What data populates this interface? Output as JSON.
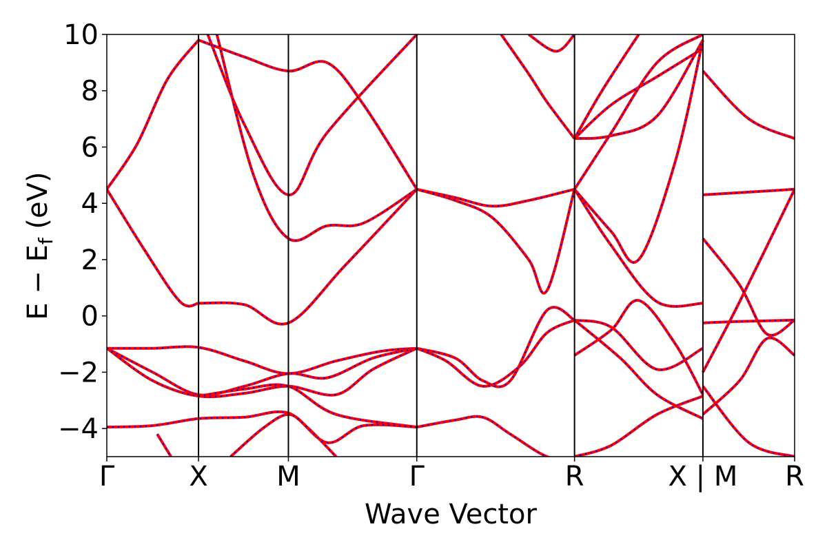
{
  "chart_data": {
    "type": "line",
    "title": "",
    "xlabel": "Wave Vector",
    "ylabel": "E − E",
    "ylabel_subscript": "f",
    "ylabel_unit": " (eV)",
    "ylim": [
      -5,
      10
    ],
    "yticks": [
      -4,
      -2,
      0,
      2,
      4,
      6,
      8,
      10
    ],
    "ytick_labels": [
      "−4",
      "−2",
      "0",
      "2",
      "4",
      "6",
      "8",
      "10"
    ],
    "xlim": [
      0,
      7.5
    ],
    "kpoints": [
      {
        "label": "Γ",
        "x": 0
      },
      {
        "label": "X",
        "x": 1
      },
      {
        "label": "M",
        "x": 1.98
      },
      {
        "label": "Γ",
        "x": 3.38
      },
      {
        "label": "R",
        "x": 5.1
      },
      {
        "label": "X | M",
        "x": 6.5
      },
      {
        "label": "R",
        "x": 7.5
      }
    ],
    "grid": false,
    "legend": "none",
    "colors": {
      "primary": "#ff0000",
      "overlay": "#0000ff"
    },
    "series": [
      {
        "x": [
          0,
          0.33,
          0.66,
          1
        ],
        "values": [
          4.5,
          6.1,
          8.4,
          9.8
        ]
      },
      {
        "x": [
          1,
          1.5,
          1.98,
          2.4,
          2.8,
          3.38
        ],
        "values": [
          9.8,
          9.2,
          8.7,
          9.0,
          7.5,
          4.5
        ]
      },
      {
        "x": [
          0,
          0.4,
          0.8,
          1
        ],
        "values": [
          4.5,
          2.4,
          0.5,
          0.45
        ]
      },
      {
        "x": [
          1,
          1.5,
          1.98,
          2.6,
          3.38
        ],
        "values": [
          0.45,
          0.4,
          -0.25,
          1.8,
          4.5
        ]
      },
      {
        "x": [
          1.1,
          1.5,
          1.98,
          2.4,
          3.38
        ],
        "values": [
          10,
          6.8,
          4.3,
          6.5,
          10
        ]
      },
      {
        "x": [
          1.2,
          1.6,
          1.98,
          2.4,
          2.8,
          3.38
        ],
        "values": [
          10,
          5.0,
          2.75,
          3.2,
          3.3,
          4.5
        ]
      },
      {
        "x": [
          0,
          0.5,
          1,
          1.5,
          1.98,
          2.5,
          3.0,
          3.38
        ],
        "values": [
          -1.15,
          -1.15,
          -1.12,
          -1.6,
          -2.05,
          -1.6,
          -1.25,
          -1.15
        ]
      },
      {
        "x": [
          0,
          0.5,
          1,
          1.5,
          1.98,
          2.4,
          2.9,
          3.38
        ],
        "values": [
          -1.15,
          -2.0,
          -2.8,
          -2.5,
          -2.05,
          -2.2,
          -1.5,
          -1.15
        ]
      },
      {
        "x": [
          0,
          0.5,
          1,
          1.5,
          1.98,
          2.5,
          2.9,
          3.38
        ],
        "values": [
          -1.15,
          -2.3,
          -2.85,
          -2.75,
          -2.5,
          -2.8,
          -1.9,
          -1.15
        ]
      },
      {
        "x": [
          1,
          1.5,
          1.98,
          2.5,
          3.38
        ],
        "values": [
          -2.85,
          -2.6,
          -2.5,
          -3.5,
          -3.95
        ]
      },
      {
        "x": [
          0,
          0.5,
          1,
          1.5,
          1.98,
          2.4,
          2.8,
          3.38
        ],
        "values": [
          -3.95,
          -3.9,
          -3.65,
          -3.6,
          -3.45,
          -4.5,
          -3.9,
          -3.95
        ]
      },
      {
        "x": [
          0.55,
          0.7
        ],
        "values": [
          -4.2,
          -5.0
        ]
      },
      {
        "x": [
          1.35,
          1.7,
          1.98,
          2.2,
          2.5
        ],
        "values": [
          -5.0,
          -4.0,
          -3.5,
          -4.0,
          -5.0
        ]
      },
      {
        "x": [
          3.38,
          3.8,
          4.2,
          4.6,
          5.1
        ],
        "values": [
          4.5,
          4.2,
          3.9,
          4.1,
          4.5
        ]
      },
      {
        "x": [
          3.38,
          3.8,
          4.2,
          4.6,
          4.8,
          5.1
        ],
        "values": [
          4.5,
          4.1,
          3.5,
          2.0,
          0.9,
          4.5
        ]
      },
      {
        "x": [
          3.38,
          3.8,
          4.1,
          4.4,
          4.8,
          5.1
        ],
        "values": [
          -1.15,
          -1.5,
          -2.3,
          -2.3,
          0.2,
          -0.15
        ]
      },
      {
        "x": [
          3.38,
          3.7,
          4.1,
          4.5,
          4.8,
          5.1
        ],
        "values": [
          -1.15,
          -1.6,
          -2.5,
          -1.8,
          -0.6,
          -0.15
        ]
      },
      {
        "x": [
          3.38,
          3.8,
          4.1,
          4.4,
          4.8,
          5.1
        ],
        "values": [
          -3.95,
          -3.7,
          -3.6,
          -4.2,
          -5.0,
          -5.1
        ]
      },
      {
        "x": [
          4.3,
          4.6,
          4.8,
          5.1
        ],
        "values": [
          10,
          8.6,
          7.6,
          6.3
        ]
      },
      {
        "x": [
          4.6,
          4.9,
          5.1
        ],
        "values": [
          10,
          9.4,
          10
        ]
      },
      {
        "x": [
          5.1,
          5.5,
          6.0,
          6.5
        ],
        "values": [
          -0.15,
          -0.4,
          -1.9,
          -1.15
        ]
      },
      {
        "x": [
          5.1,
          5.5,
          5.8,
          6.2,
          6.5
        ],
        "values": [
          -1.4,
          -0.5,
          0.55,
          -1.0,
          -2.8
        ]
      },
      {
        "x": [
          5.1,
          5.6,
          6.0,
          6.5
        ],
        "values": [
          -0.15,
          -1.5,
          -2.8,
          -3.65
        ]
      },
      {
        "x": [
          5.1,
          5.5,
          6.0,
          6.5
        ],
        "values": [
          -5.0,
          -4.6,
          -3.5,
          -2.85
        ]
      },
      {
        "x": [
          5.1,
          5.5,
          6.0,
          6.5
        ],
        "values": [
          4.5,
          2.5,
          0.5,
          0.45
        ]
      },
      {
        "x": [
          5.1,
          5.5,
          5.8,
          6.2,
          6.5
        ],
        "values": [
          4.5,
          3.0,
          2.0,
          5.5,
          9.8
        ]
      },
      {
        "x": [
          5.1,
          5.5,
          6.0,
          6.5
        ],
        "values": [
          4.5,
          6.5,
          9.0,
          10
        ]
      },
      {
        "x": [
          5.1,
          5.5,
          6.0,
          6.5
        ],
        "values": [
          6.3,
          6.4,
          7.1,
          9.8
        ]
      },
      {
        "x": [
          5.1,
          5.5,
          6.0,
          6.5
        ],
        "values": [
          6.3,
          7.5,
          8.5,
          9.5
        ]
      },
      {
        "x": [
          5.1,
          5.4,
          5.8
        ],
        "values": [
          6.3,
          8.0,
          10
        ]
      },
      {
        "x": [
          6.5,
          7.0,
          7.5
        ],
        "values": [
          8.7,
          7.0,
          6.3
        ]
      },
      {
        "x": [
          6.5,
          7.0,
          7.5
        ],
        "values": [
          4.3,
          4.4,
          4.5
        ]
      },
      {
        "x": [
          6.5,
          6.9,
          7.5
        ],
        "values": [
          -2.0,
          0.5,
          4.5
        ]
      },
      {
        "x": [
          6.5,
          6.9,
          7.2,
          7.5
        ],
        "values": [
          2.75,
          1.1,
          -0.65,
          -0.15
        ]
      },
      {
        "x": [
          6.5,
          6.9,
          7.5
        ],
        "values": [
          -0.25,
          -0.2,
          -0.15
        ]
      },
      {
        "x": [
          6.5,
          6.9,
          7.2,
          7.5
        ],
        "values": [
          -3.5,
          -2.3,
          -0.8,
          -1.4
        ]
      },
      {
        "x": [
          6.5,
          7.0,
          7.5
        ],
        "values": [
          -2.5,
          -4.5,
          -5.0
        ]
      }
    ]
  }
}
